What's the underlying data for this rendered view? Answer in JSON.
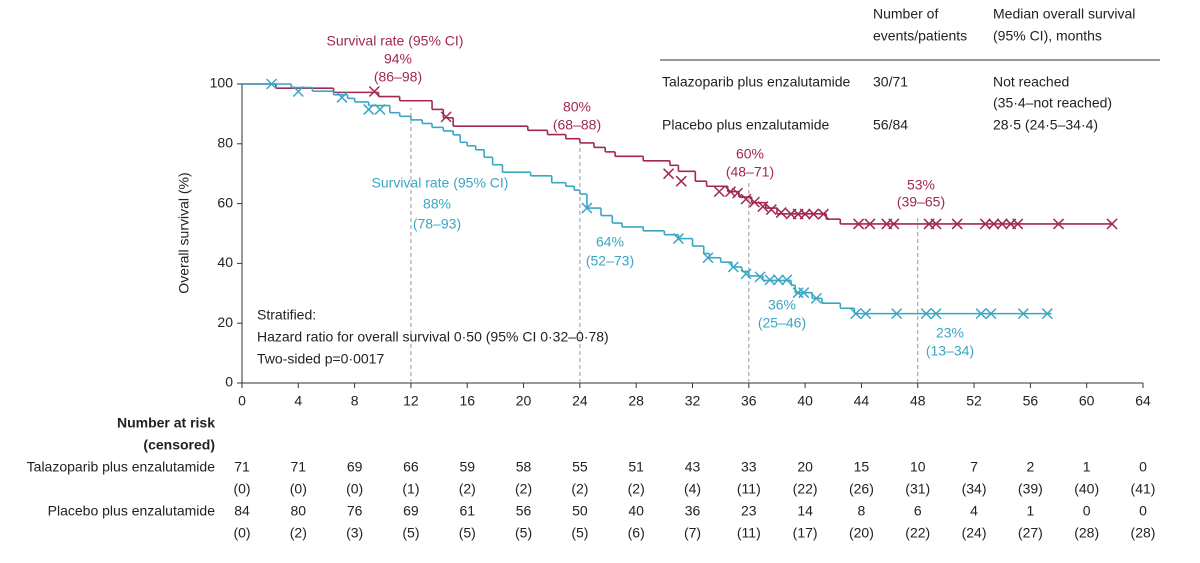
{
  "chart_data": {
    "type": "step",
    "ylabel": "Overall survival (%)",
    "xlim": [
      0,
      64
    ],
    "xticks": [
      0,
      4,
      8,
      12,
      16,
      20,
      24,
      28,
      32,
      36,
      40,
      44,
      48,
      52,
      56,
      60,
      64
    ],
    "ylim": [
      0,
      100
    ],
    "yticks": [
      0,
      20,
      40,
      60,
      80,
      100
    ],
    "reference_x": [
      12,
      24,
      36,
      48
    ],
    "series": [
      {
        "name": "Talazoparib plus enzalutamide",
        "color": "#a3284f",
        "x": [
          0,
          2.4,
          6.5,
          9.7,
          11.2,
          13.5,
          14.3,
          15,
          20.3,
          21.7,
          23,
          24,
          25,
          25.8,
          26.5,
          28.5,
          30.4,
          31,
          32.2,
          33,
          34.5,
          35.3,
          36.2,
          37.2,
          38,
          41.5,
          42.5,
          61.8
        ],
        "values": [
          100,
          98.6,
          97.2,
          95.8,
          94.4,
          91.5,
          88.7,
          85.9,
          84.5,
          83.1,
          81.7,
          80.3,
          78.8,
          77.3,
          75.8,
          74.3,
          72.8,
          70.8,
          67.5,
          65.8,
          64,
          62.2,
          60.3,
          58.5,
          56.6,
          54.8,
          53.2,
          53.2
        ],
        "censored": {
          "x": [
            9.4,
            14.5,
            30.3,
            31.2,
            33.9,
            34.7,
            35.2,
            35.8,
            36.4,
            37,
            37.6,
            38.3,
            39,
            39.5,
            40,
            40.6,
            41.3,
            43.8,
            44.6,
            45.8,
            46.3,
            48.8,
            49.3,
            50.8,
            52.8,
            53.4,
            54,
            54.6,
            55.1,
            58,
            61.8
          ],
          "values": [
            97.5,
            89,
            70,
            67.5,
            64,
            64,
            63.5,
            61.5,
            60.5,
            59,
            58,
            57,
            56.5,
            56.5,
            56.5,
            56.5,
            56.5,
            53.2,
            53.2,
            53.2,
            53.2,
            53.2,
            53.2,
            53.2,
            53.2,
            53.2,
            53.2,
            53.2,
            53.2,
            53.2,
            53.2
          ]
        },
        "annotations": [
          "Survival rate (95% CI)",
          "94%",
          "(86–98)",
          "80%",
          "(68–88)",
          "60%",
          "(48–71)",
          "53%",
          "(39–65)"
        ]
      },
      {
        "name": "Placebo plus enzalutamide",
        "color": "#3aa6c4",
        "x": [
          0,
          3.5,
          5,
          6.5,
          7.5,
          8,
          9,
          10.5,
          11.2,
          12,
          12.8,
          13.5,
          14.3,
          15,
          15.5,
          16,
          16.6,
          17.2,
          17.8,
          18.5,
          20.5,
          22,
          23,
          23.6,
          24,
          24.5,
          25.5,
          26.3,
          27,
          28.5,
          30,
          31,
          32,
          32.8,
          33.2,
          34,
          34.8,
          35.5,
          36,
          37,
          39,
          39.3,
          40.5,
          41.2,
          42.5,
          43.5,
          57.5
        ],
        "values": [
          100,
          98.8,
          97.6,
          96.4,
          95.2,
          94,
          92.8,
          90.4,
          89.2,
          88,
          86.8,
          85.5,
          84.3,
          83,
          80.5,
          79.3,
          78,
          75.5,
          73,
          70.5,
          69.3,
          67,
          65.8,
          64.5,
          63.2,
          58.5,
          56,
          53.5,
          52.2,
          50.9,
          49.6,
          48.3,
          45.8,
          43.3,
          41.9,
          40.4,
          38.8,
          37.3,
          35.8,
          34.3,
          32.7,
          30.2,
          28.3,
          26.7,
          25,
          23.2,
          23.2
        ],
        "censored": {
          "x": [
            2.1,
            4,
            7.1,
            9,
            9.8,
            24.5,
            31,
            33.1,
            34.9,
            35.8,
            36.8,
            37.5,
            38.1,
            38.7,
            39.5,
            39.9,
            40.8,
            43.6,
            44.3,
            46.5,
            48.6,
            49.3,
            52.5,
            53.2,
            55.5,
            57.2
          ],
          "values": [
            100,
            97.5,
            95.5,
            91.5,
            91.5,
            58.5,
            48.3,
            41.9,
            38.8,
            36.5,
            35.5,
            34.5,
            34.5,
            34.5,
            30.2,
            30.2,
            28.3,
            23.2,
            23.2,
            23.2,
            23.2,
            23.2,
            23.2,
            23.2,
            23.2,
            23.2
          ]
        },
        "annotations": [
          "Survival rate (95% CI)",
          "88%",
          "(78–93)",
          "64%",
          "(52–73)",
          "36%",
          "(25–46)",
          "23%",
          "(13–34)"
        ]
      }
    ],
    "stats": [
      "Stratified:",
      "Hazard ratio for overall survival 0·50 (95% CI 0·32–0·78)",
      "Two-sided p=0·0017"
    ],
    "summary_table": {
      "headers": [
        [
          "Number of",
          "events/patients"
        ],
        [
          "Median overall survival",
          "(95% CI), months"
        ]
      ],
      "rows": [
        [
          "Talazoparib plus enzalutamide",
          "30/71",
          [
            "Not reached",
            "(35·4–not reached)"
          ]
        ],
        [
          "Placebo plus enzalutamide",
          "56/84",
          [
            "28·5 (24·5–34·4)"
          ]
        ]
      ]
    },
    "risk_table": {
      "title": [
        "Number at risk",
        "(censored)"
      ],
      "rows": [
        {
          "name": "Talazoparib plus enzalutamide",
          "at_risk": [
            71,
            71,
            69,
            66,
            59,
            58,
            55,
            51,
            43,
            33,
            20,
            15,
            10,
            7,
            2,
            1,
            0
          ],
          "censored": [
            "(0)",
            "(0)",
            "(0)",
            "(1)",
            "(2)",
            "(2)",
            "(2)",
            "(2)",
            "(4)",
            "(11)",
            "(22)",
            "(26)",
            "(31)",
            "(34)",
            "(39)",
            "(40)",
            "(41)"
          ]
        },
        {
          "name": "Placebo plus enzalutamide",
          "at_risk": [
            84,
            80,
            76,
            69,
            61,
            56,
            50,
            40,
            36,
            23,
            14,
            8,
            6,
            4,
            1,
            0,
            0
          ],
          "censored": [
            "(0)",
            "(2)",
            "(3)",
            "(5)",
            "(5)",
            "(5)",
            "(5)",
            "(6)",
            "(7)",
            "(11)",
            "(17)",
            "(20)",
            "(22)",
            "(24)",
            "(27)",
            "(28)",
            "(28)"
          ]
        }
      ]
    }
  }
}
